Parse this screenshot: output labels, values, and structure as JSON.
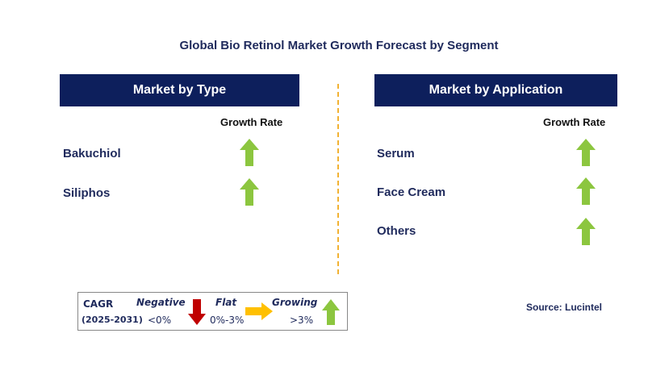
{
  "title": "Global Bio Retinol Market Growth Forecast by Segment",
  "left_panel": {
    "header": "Market by Type",
    "growth_rate_label": "Growth Rate",
    "items": [
      {
        "label": "Bakuchiol",
        "trend": "growing"
      },
      {
        "label": "Siliphos",
        "trend": "growing"
      }
    ]
  },
  "right_panel": {
    "header": "Market by Application",
    "growth_rate_label": "Growth Rate",
    "items": [
      {
        "label": "Serum",
        "trend": "growing"
      },
      {
        "label": "Face Cream",
        "trend": "growing"
      },
      {
        "label": "Others",
        "trend": "growing"
      }
    ]
  },
  "legend": {
    "cagr_label": "CAGR",
    "period": "(2025-2031)",
    "negative_label": "Negative",
    "negative_range": "<0%",
    "flat_label": "Flat",
    "flat_range": "0%-3%",
    "growing_label": "Growing",
    "growing_range": ">3%"
  },
  "source": "Source: Lucintel",
  "colors": {
    "header_bg": "#0d1f5c",
    "growing_arrow": "#8cc63f",
    "negative_arrow": "#c00000",
    "flat_arrow": "#ffc000",
    "divider": "#f2b233"
  },
  "icons": {
    "growing": "up-arrow-icon",
    "negative": "down-arrow-icon",
    "flat": "right-arrow-icon"
  }
}
